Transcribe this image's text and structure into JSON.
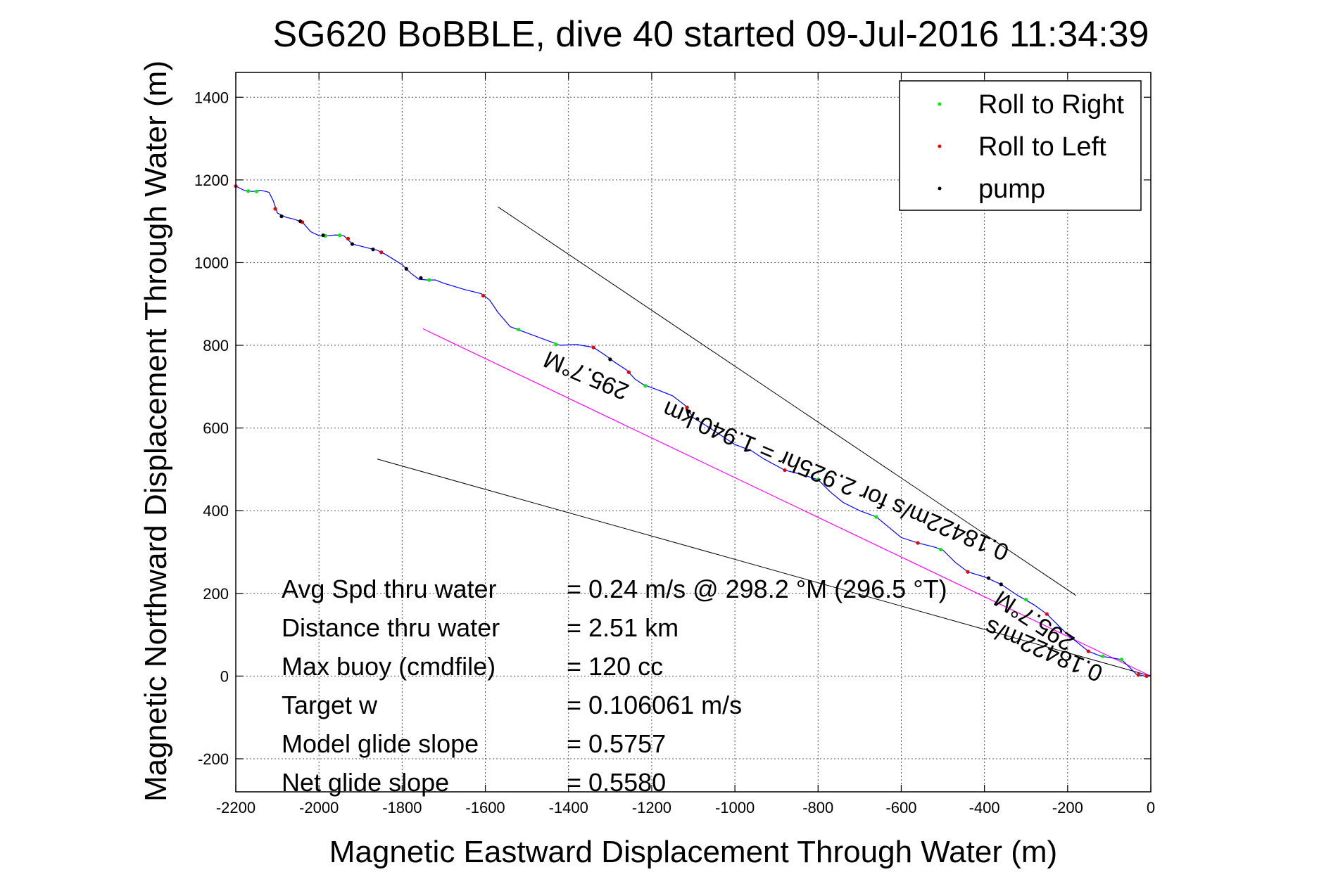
{
  "chart_data": {
    "type": "line",
    "title": "SG620 BoBBLE, dive 40 started 09-Jul-2016 11:34:39",
    "xlabel": "Magnetic Eastward Displacement Through Water (m)",
    "ylabel": "Magnetic Northward Displacement Through Water (m)",
    "xlim": [
      -2200,
      0
    ],
    "ylim": [
      -280,
      1460
    ],
    "xticks": [
      -2200,
      -2000,
      -1800,
      -1600,
      -1400,
      -1200,
      -1000,
      -800,
      -600,
      -400,
      -200,
      0
    ],
    "yticks": [
      -200,
      0,
      200,
      400,
      600,
      800,
      1000,
      1200,
      1400
    ],
    "xtick_labels": [
      "-2200",
      "-2000",
      "-1800",
      "-1600",
      "-1400",
      "-1200",
      "-1000",
      "-800",
      "-600",
      "-400",
      "-200",
      "0"
    ],
    "ytick_labels": [
      "-200",
      "0",
      "200",
      "400",
      "600",
      "800",
      "1000",
      "1200",
      "1400"
    ],
    "grid": true,
    "legend_placement": "top-right",
    "legend": [
      {
        "label": "Roll to Right",
        "color": "#00ee00"
      },
      {
        "label": "Roll to Left",
        "color": "#ee0000"
      },
      {
        "label": "pump",
        "color": "#000000"
      }
    ],
    "colors": {
      "track": "#0000ff",
      "course": "#ff00ff",
      "heading_line": "#000000"
    },
    "track": [
      [
        -2200,
        1185
      ],
      [
        -2180,
        1175
      ],
      [
        -2160,
        1172
      ],
      [
        -2140,
        1175
      ],
      [
        -2120,
        1170
      ],
      [
        -2110,
        1150
      ],
      [
        -2100,
        1120
      ],
      [
        -2080,
        1110
      ],
      [
        -2060,
        1105
      ],
      [
        -2040,
        1098
      ],
      [
        -2020,
        1075
      ],
      [
        -2000,
        1065
      ],
      [
        -1980,
        1065
      ],
      [
        -1960,
        1067
      ],
      [
        -1940,
        1065
      ],
      [
        -1920,
        1045
      ],
      [
        -1900,
        1040
      ],
      [
        -1880,
        1035
      ],
      [
        -1860,
        1030
      ],
      [
        -1840,
        1020
      ],
      [
        -1800,
        995
      ],
      [
        -1780,
        975
      ],
      [
        -1760,
        960
      ],
      [
        -1740,
        958
      ],
      [
        -1720,
        958
      ],
      [
        -1700,
        950
      ],
      [
        -1650,
        935
      ],
      [
        -1610,
        925
      ],
      [
        -1590,
        910
      ],
      [
        -1570,
        880
      ],
      [
        -1540,
        845
      ],
      [
        -1500,
        830
      ],
      [
        -1460,
        815
      ],
      [
        -1420,
        800
      ],
      [
        -1380,
        802
      ],
      [
        -1340,
        795
      ],
      [
        -1310,
        775
      ],
      [
        -1290,
        760
      ],
      [
        -1260,
        740
      ],
      [
        -1240,
        718
      ],
      [
        -1220,
        705
      ],
      [
        -1180,
        690
      ],
      [
        -1150,
        678
      ],
      [
        -1120,
        655
      ],
      [
        -1100,
        625
      ],
      [
        -1060,
        600
      ],
      [
        -1000,
        560
      ],
      [
        -960,
        545
      ],
      [
        -930,
        525
      ],
      [
        -880,
        498
      ],
      [
        -840,
        488
      ],
      [
        -800,
        475
      ],
      [
        -770,
        445
      ],
      [
        -740,
        420
      ],
      [
        -700,
        400
      ],
      [
        -660,
        385
      ],
      [
        -630,
        360
      ],
      [
        -600,
        335
      ],
      [
        -560,
        322
      ],
      [
        -520,
        312
      ],
      [
        -500,
        305
      ],
      [
        -470,
        275
      ],
      [
        -440,
        252
      ],
      [
        -400,
        240
      ],
      [
        -360,
        222
      ],
      [
        -320,
        195
      ],
      [
        -280,
        172
      ],
      [
        -250,
        150
      ],
      [
        -220,
        120
      ],
      [
        -200,
        100
      ],
      [
        -175,
        80
      ],
      [
        -150,
        60
      ],
      [
        -120,
        48
      ],
      [
        -100,
        45
      ],
      [
        -70,
        40
      ],
      [
        -50,
        20
      ],
      [
        -35,
        5
      ],
      [
        -15,
        0
      ],
      [
        0,
        2
      ]
    ],
    "course_line": [
      [
        -1750,
        840
      ],
      [
        0,
        0
      ]
    ],
    "heading_lines": [
      [
        [
          -1570,
          1135
        ],
        [
          -180,
          195
        ]
      ],
      [
        [
          -1860,
          525
        ],
        [
          0,
          0
        ]
      ]
    ],
    "roll_right_points": [
      [
        -2170,
        1173
      ],
      [
        -2150,
        1172
      ],
      [
        -1985,
        1065
      ],
      [
        -1950,
        1066
      ],
      [
        -1735,
        958
      ],
      [
        -1520,
        838
      ],
      [
        -1430,
        802
      ],
      [
        -1215,
        702
      ],
      [
        -800,
        475
      ],
      [
        -660,
        385
      ],
      [
        -505,
        306
      ],
      [
        -300,
        185
      ],
      [
        -115,
        48
      ],
      [
        -70,
        40
      ]
    ],
    "roll_left_points": [
      [
        -2200,
        1185
      ],
      [
        -2105,
        1130
      ],
      [
        -2040,
        1098
      ],
      [
        -1930,
        1058
      ],
      [
        -1850,
        1025
      ],
      [
        -1605,
        920
      ],
      [
        -1340,
        795
      ],
      [
        -1255,
        735
      ],
      [
        -1115,
        650
      ],
      [
        -880,
        498
      ],
      [
        -560,
        322
      ],
      [
        -440,
        252
      ],
      [
        -250,
        150
      ],
      [
        -150,
        60
      ],
      [
        -30,
        3
      ],
      [
        -10,
        0
      ]
    ],
    "pump_points": [
      [
        -2090,
        1112
      ],
      [
        -2045,
        1100
      ],
      [
        -1990,
        1066
      ],
      [
        -1920,
        1045
      ],
      [
        -1870,
        1032
      ],
      [
        -1790,
        985
      ],
      [
        -1755,
        963
      ],
      [
        -1300,
        766
      ],
      [
        -1110,
        640
      ],
      [
        -1090,
        622
      ],
      [
        -390,
        237
      ],
      [
        -360,
        222
      ]
    ],
    "stats": [
      {
        "label": "Avg Spd thru water",
        "value": "=  0.24 m/s @ 298.2  °M (296.5 °T)"
      },
      {
        "label": "Distance thru water",
        "value": "=  2.51 km"
      },
      {
        "label": "Max buoy (cmdfile)",
        "value": "= 120 cc"
      },
      {
        "label": "Target w",
        "value": "= 0.106061 m/s"
      },
      {
        "label": "Model glide slope",
        "value": "= 0.5757"
      },
      {
        "label": "Net glide slope",
        "value": "= 0.5580"
      }
    ],
    "annotations": [
      {
        "text": "295.7°M",
        "x": -1350,
        "y": 745,
        "rotation": 23
      },
      {
        "text": "0.18422m/s for 2.925hr = 1.940 km",
        "x": -750,
        "y": 490,
        "rotation": 23
      },
      {
        "text": "295.7°M",
        "x": -270,
        "y": 150,
        "rotation": 33
      },
      {
        "text": "0.18422m/s",
        "x": -250,
        "y": 80,
        "rotation": 23
      }
    ]
  }
}
